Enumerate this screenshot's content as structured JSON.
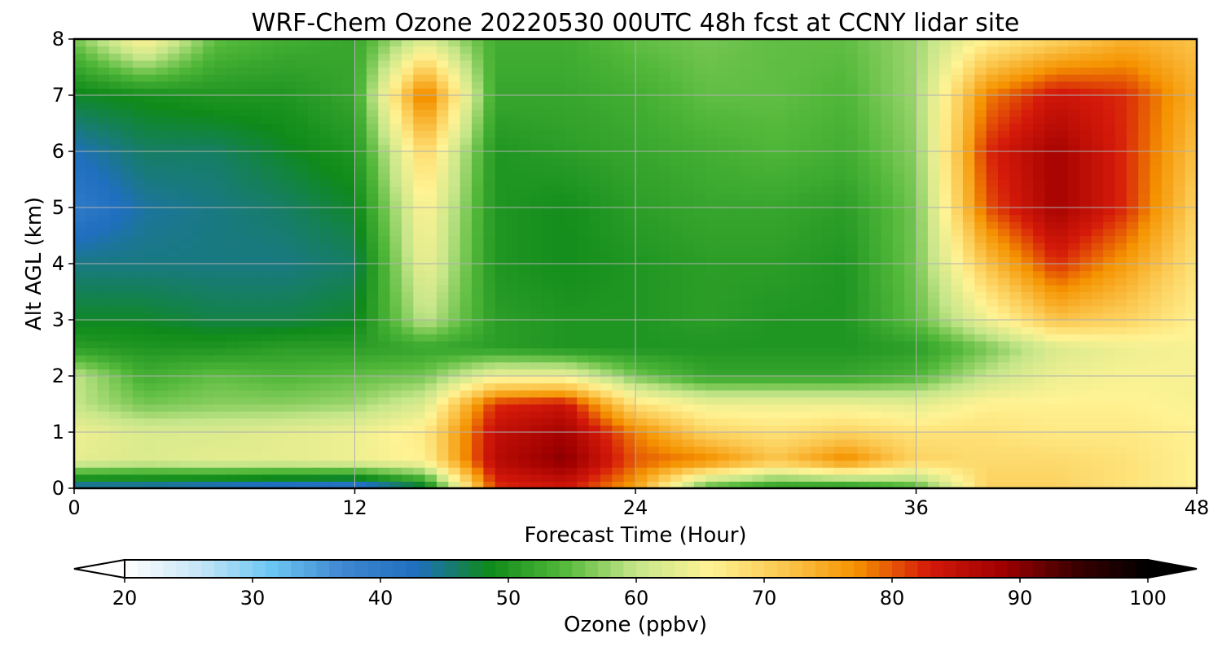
{
  "chart_data": {
    "type": "heatmap",
    "title": "WRF-Chem Ozone  20220530 00UTC 48h fcst at CCNY lidar site",
    "xlabel": "Forecast Time (Hour)",
    "ylabel": "Alt AGL (km)",
    "xlim": [
      0,
      48
    ],
    "ylim": [
      0,
      8
    ],
    "xticks": [
      0,
      12,
      24,
      36,
      48
    ],
    "yticks": [
      0,
      1,
      2,
      3,
      4,
      5,
      6,
      7,
      8
    ],
    "grid": true,
    "x": [
      0,
      3,
      6,
      9,
      12,
      15,
      18,
      21,
      24,
      27,
      30,
      33,
      36,
      39,
      42,
      45,
      48
    ],
    "y": [
      0.05,
      0.5,
      1,
      1.5,
      2,
      2.5,
      3,
      4,
      5,
      6,
      7,
      8
    ],
    "z": [
      [
        44,
        44,
        43,
        42,
        41,
        48,
        82,
        84,
        76,
        56,
        52,
        52,
        55,
        70,
        70,
        68,
        66
      ],
      [
        63,
        62,
        63,
        63,
        64,
        66,
        86,
        90,
        80,
        78,
        72,
        78,
        70,
        69,
        69,
        68,
        66
      ],
      [
        64,
        62,
        62,
        63,
        64,
        67,
        85,
        88,
        78,
        70,
        68,
        70,
        68,
        68,
        67,
        67,
        66
      ],
      [
        60,
        56,
        57,
        57,
        58,
        62,
        82,
        84,
        68,
        64,
        64,
        64,
        63,
        66,
        66,
        66,
        65
      ],
      [
        60,
        53,
        55,
        54,
        55,
        56,
        64,
        64,
        56,
        52,
        52,
        52,
        54,
        60,
        64,
        65,
        65
      ],
      [
        51,
        50,
        50,
        51,
        51,
        52,
        51,
        50,
        50,
        50,
        50,
        50,
        51,
        56,
        62,
        64,
        65
      ],
      [
        48,
        48,
        47,
        47,
        48,
        60,
        51,
        50,
        50,
        51,
        50,
        50,
        55,
        64,
        72,
        70,
        66
      ],
      [
        45,
        45,
        45,
        45,
        46,
        64,
        50,
        49,
        50,
        51,
        51,
        50,
        56,
        72,
        82,
        76,
        68
      ],
      [
        40,
        44,
        45,
        46,
        48,
        66,
        50,
        49,
        51,
        52,
        52,
        51,
        56,
        80,
        88,
        82,
        70
      ],
      [
        43,
        46,
        46,
        48,
        50,
        70,
        50,
        51,
        52,
        53,
        54,
        53,
        57,
        82,
        88,
        82,
        72
      ],
      [
        48,
        49,
        50,
        50,
        52,
        80,
        52,
        52,
        53,
        55,
        55,
        54,
        58,
        78,
        84,
        82,
        74
      ],
      [
        56,
        66,
        55,
        53,
        52,
        62,
        53,
        53,
        55,
        56,
        55,
        55,
        58,
        66,
        70,
        74,
        72
      ]
    ],
    "colorbar": {
      "label": "Ozone  (ppbv)",
      "min": 20,
      "max": 100,
      "ticks": [
        20,
        30,
        40,
        50,
        60,
        70,
        80,
        90,
        100
      ],
      "extend": "both",
      "colors": [
        "#ffffff",
        "#c8e6f7",
        "#6cc7f3",
        "#3f86d0",
        "#1f6fbf",
        "#0f8a1a",
        "#52b83a",
        "#c6e68a",
        "#fff394",
        "#fbc850",
        "#f59300",
        "#d51a0a",
        "#a00000",
        "#3c0000",
        "#000000"
      ]
    }
  }
}
